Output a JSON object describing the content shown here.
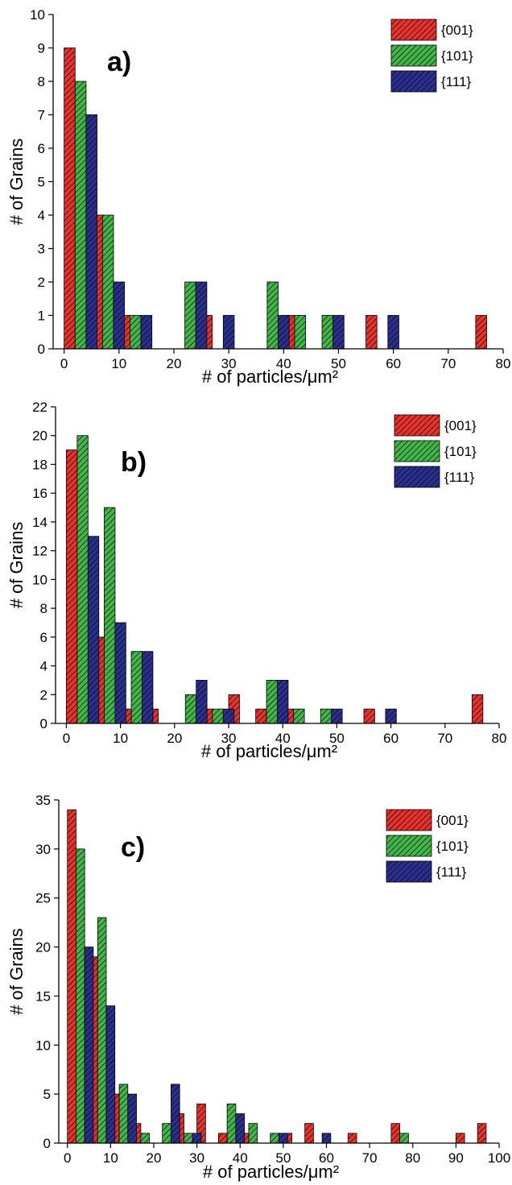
{
  "chart_data": [
    {
      "type": "bar",
      "panel_label": "a)",
      "xlabel": "# of particles/μm²",
      "ylabel": "# of Grains",
      "xlim": [
        -2,
        80
      ],
      "ylim": [
        0,
        10
      ],
      "xticks": [
        0,
        10,
        20,
        30,
        40,
        50,
        60,
        70,
        80
      ],
      "yticks": [
        0,
        1,
        2,
        3,
        4,
        5,
        6,
        7,
        8,
        9,
        10
      ],
      "legend_position": "top-right",
      "series": [
        {
          "name": "{001}",
          "color": "#e8322b",
          "points": [
            [
              1,
              9
            ],
            [
              6,
              4
            ],
            [
              11,
              1
            ],
            [
              26,
              1
            ],
            [
              41,
              1
            ],
            [
              56,
              1
            ],
            [
              76,
              1
            ]
          ]
        },
        {
          "name": "{101}",
          "color": "#43b649",
          "points": [
            [
              3,
              8
            ],
            [
              8,
              4
            ],
            [
              13,
              1
            ],
            [
              23,
              2
            ],
            [
              38,
              2
            ],
            [
              43,
              1
            ],
            [
              48,
              1
            ]
          ]
        },
        {
          "name": "{111}",
          "color": "#2b2f8f",
          "points": [
            [
              5,
              7
            ],
            [
              10,
              2
            ],
            [
              15,
              1
            ],
            [
              25,
              2
            ],
            [
              30,
              1
            ],
            [
              40,
              1
            ],
            [
              50,
              1
            ],
            [
              60,
              1
            ]
          ]
        }
      ]
    },
    {
      "type": "bar",
      "panel_label": "b)",
      "xlabel": "# of particles/μm²",
      "ylabel": "# of Grains",
      "xlim": [
        -2,
        80
      ],
      "ylim": [
        0,
        22
      ],
      "xticks": [
        0,
        10,
        20,
        30,
        40,
        50,
        60,
        70,
        80
      ],
      "yticks": [
        0,
        2,
        4,
        6,
        8,
        10,
        12,
        14,
        16,
        18,
        20,
        22
      ],
      "legend_position": "top-right",
      "series": [
        {
          "name": "{001}",
          "color": "#e8322b",
          "points": [
            [
              1,
              19
            ],
            [
              6,
              6
            ],
            [
              11,
              1
            ],
            [
              16,
              1
            ],
            [
              26,
              1
            ],
            [
              31,
              2
            ],
            [
              36,
              1
            ],
            [
              41,
              1
            ],
            [
              56,
              1
            ],
            [
              76,
              2
            ]
          ]
        },
        {
          "name": "{101}",
          "color": "#43b649",
          "points": [
            [
              3,
              20
            ],
            [
              8,
              15
            ],
            [
              13,
              5
            ],
            [
              23,
              2
            ],
            [
              28,
              1
            ],
            [
              38,
              3
            ],
            [
              43,
              1
            ],
            [
              48,
              1
            ]
          ]
        },
        {
          "name": "{111}",
          "color": "#2b2f8f",
          "points": [
            [
              5,
              13
            ],
            [
              10,
              7
            ],
            [
              15,
              5
            ],
            [
              25,
              3
            ],
            [
              30,
              1
            ],
            [
              40,
              3
            ],
            [
              50,
              1
            ],
            [
              60,
              1
            ]
          ]
        }
      ]
    },
    {
      "type": "bar",
      "panel_label": "c)",
      "xlabel": "# of particles/μm²",
      "ylabel": "# of Grains",
      "xlim": [
        -2,
        100
      ],
      "ylim": [
        0,
        35
      ],
      "xticks": [
        0,
        10,
        20,
        30,
        40,
        50,
        60,
        70,
        80,
        90,
        100
      ],
      "yticks": [
        0,
        5,
        10,
        15,
        20,
        25,
        30,
        35
      ],
      "legend_position": "top-right",
      "series": [
        {
          "name": "{001}",
          "color": "#e8322b",
          "points": [
            [
              1,
              34
            ],
            [
              6,
              19
            ],
            [
              11,
              5
            ],
            [
              16,
              2
            ],
            [
              26,
              3
            ],
            [
              31,
              4
            ],
            [
              36,
              1
            ],
            [
              41,
              1
            ],
            [
              51,
              1
            ],
            [
              56,
              2
            ],
            [
              66,
              1
            ],
            [
              76,
              2
            ],
            [
              91,
              1
            ],
            [
              96,
              2
            ]
          ]
        },
        {
          "name": "{101}",
          "color": "#43b649",
          "points": [
            [
              3,
              30
            ],
            [
              8,
              23
            ],
            [
              13,
              6
            ],
            [
              18,
              1
            ],
            [
              23,
              2
            ],
            [
              28,
              1
            ],
            [
              38,
              4
            ],
            [
              43,
              2
            ],
            [
              48,
              1
            ],
            [
              78,
              1
            ]
          ]
        },
        {
          "name": "{111}",
          "color": "#2b2f8f",
          "points": [
            [
              5,
              20
            ],
            [
              10,
              14
            ],
            [
              15,
              5
            ],
            [
              25,
              6
            ],
            [
              30,
              1
            ],
            [
              40,
              3
            ],
            [
              50,
              1
            ],
            [
              60,
              1
            ]
          ]
        }
      ]
    }
  ]
}
